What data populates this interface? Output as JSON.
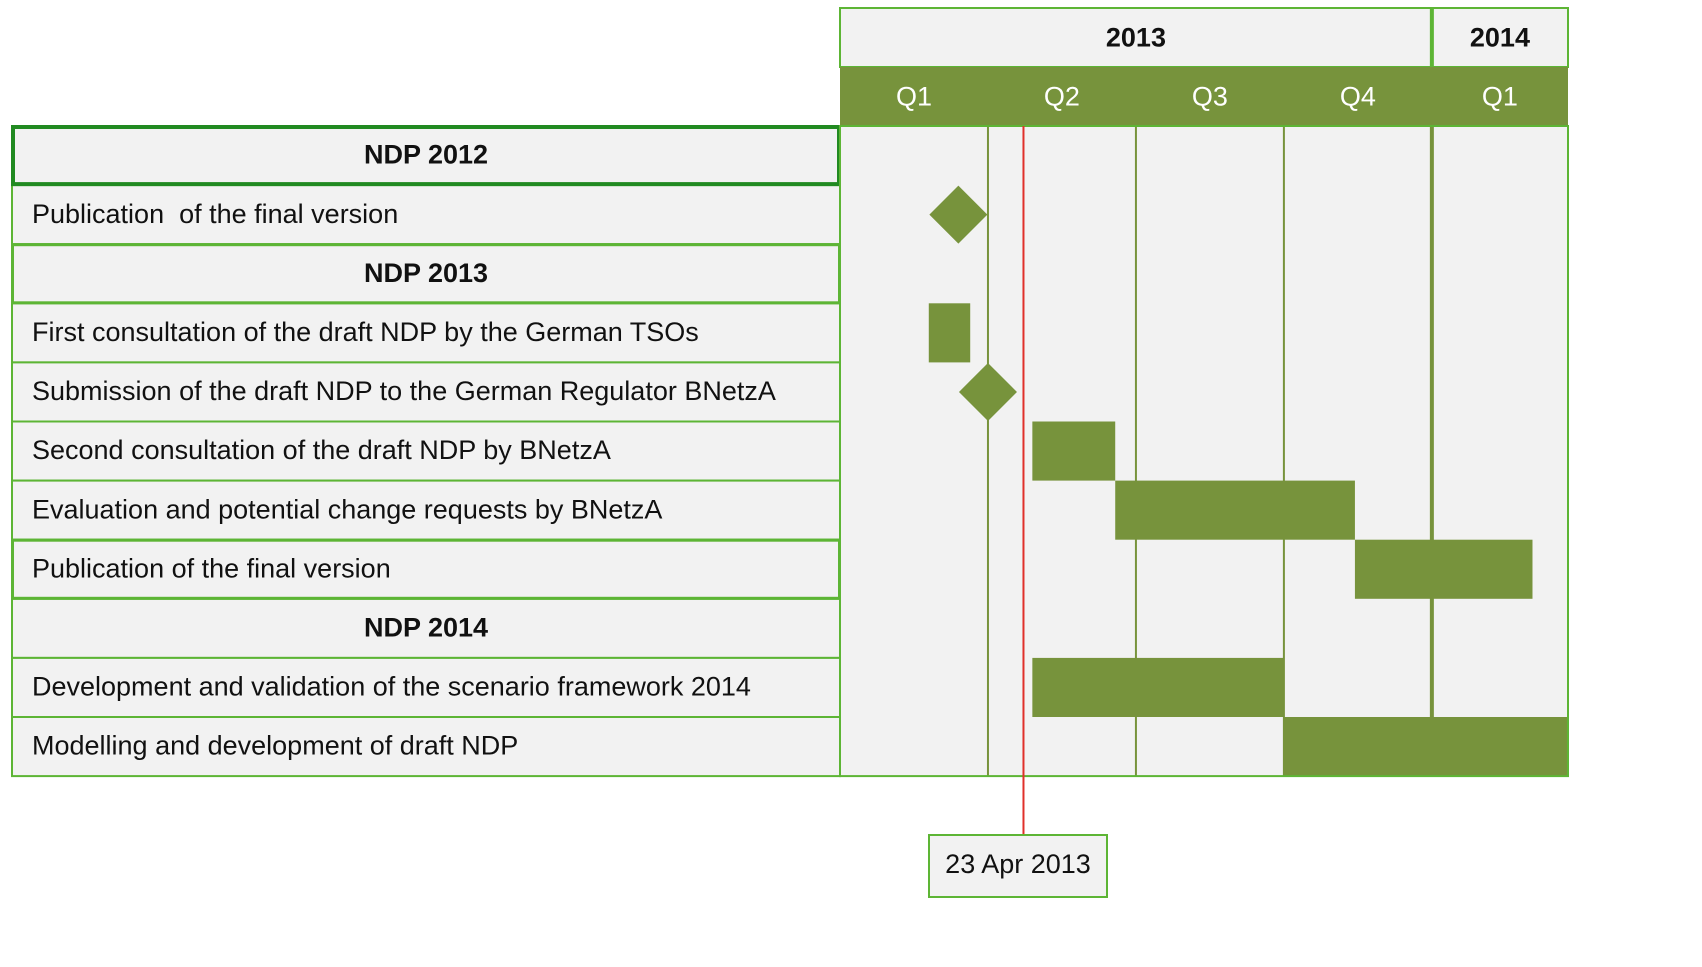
{
  "chart_data": {
    "type": "gantt",
    "color": "#77933c",
    "xlim": [
      2013,
      2014.23
    ],
    "years": [
      {
        "label": "2013",
        "start": 2013,
        "end": 2014
      },
      {
        "label": "2014",
        "start": 2014,
        "end": 2015
      }
    ],
    "quarters": [
      {
        "label": "Q1",
        "start": 2013,
        "end": 2013.25
      },
      {
        "label": "Q2",
        "start": 2013.25,
        "end": 2013.5
      },
      {
        "label": "Q3",
        "start": 2013.5,
        "end": 2013.75
      },
      {
        "label": "Q4",
        "start": 2013.75,
        "end": 2014
      },
      {
        "label": "Q1",
        "start": 2014,
        "end": 2014.25
      }
    ],
    "rows": [
      {
        "label": "NDP 2012",
        "group": true
      },
      {
        "label": "Publication  of the final version",
        "milestone": 2013.2
      },
      {
        "label": "NDP 2013",
        "group": true
      },
      {
        "label": "First consultation of the draft NDP by the German TSOs",
        "start": 2013.15,
        "end": 2013.22
      },
      {
        "label": "Submission of the draft NDP to the German Regulator BNetzA",
        "milestone": 2013.25
      },
      {
        "label": "Second consultation of the draft NDP by BNetzA",
        "start": 2013.325,
        "end": 2013.465
      },
      {
        "label": "Evaluation and potential change requests by BNetzA",
        "start": 2013.465,
        "end": 2013.87
      },
      {
        "label": "Publication of the final version",
        "start": 2013.87,
        "end": 2014.17
      },
      {
        "label": "NDP 2014",
        "group": true
      },
      {
        "label": "Development and validation of the scenario framework 2014",
        "start": 2013.325,
        "end": 2013.75
      },
      {
        "label": "Modelling and development of draft NDP",
        "start": 2013.75,
        "end": 2014.23
      }
    ],
    "today": {
      "label": "23 Apr 2013",
      "value": 2013.31
    }
  }
}
